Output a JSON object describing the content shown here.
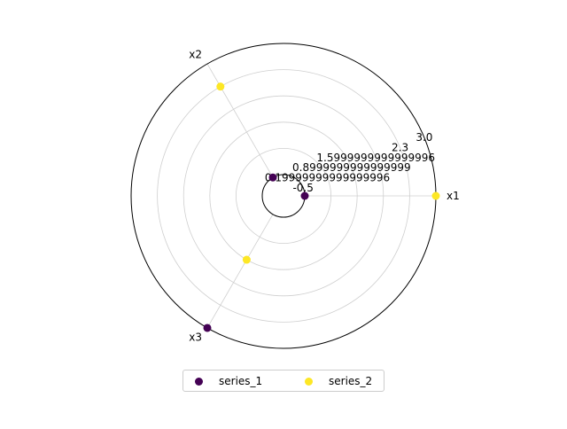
{
  "chart_data": {
    "type": "scatter",
    "projection": "polar",
    "grid": true,
    "legend_placement": "bottom-center",
    "axes": [
      "x1",
      "x2",
      "x3"
    ],
    "radial_ticks": [
      "-0.5",
      "0.19999999999999996",
      "0.8999999999999999",
      "1.5999999999999996",
      "2.3",
      "3.0"
    ],
    "rlim": [
      -0.5,
      3.0
    ],
    "series": [
      {
        "name": "series_1",
        "color": "#440154",
        "values": [
          -0.5,
          -0.5,
          3.0
        ]
      },
      {
        "name": "series_2",
        "color": "#fde725",
        "values": [
          3.0,
          2.3,
          0.9
        ]
      }
    ]
  }
}
